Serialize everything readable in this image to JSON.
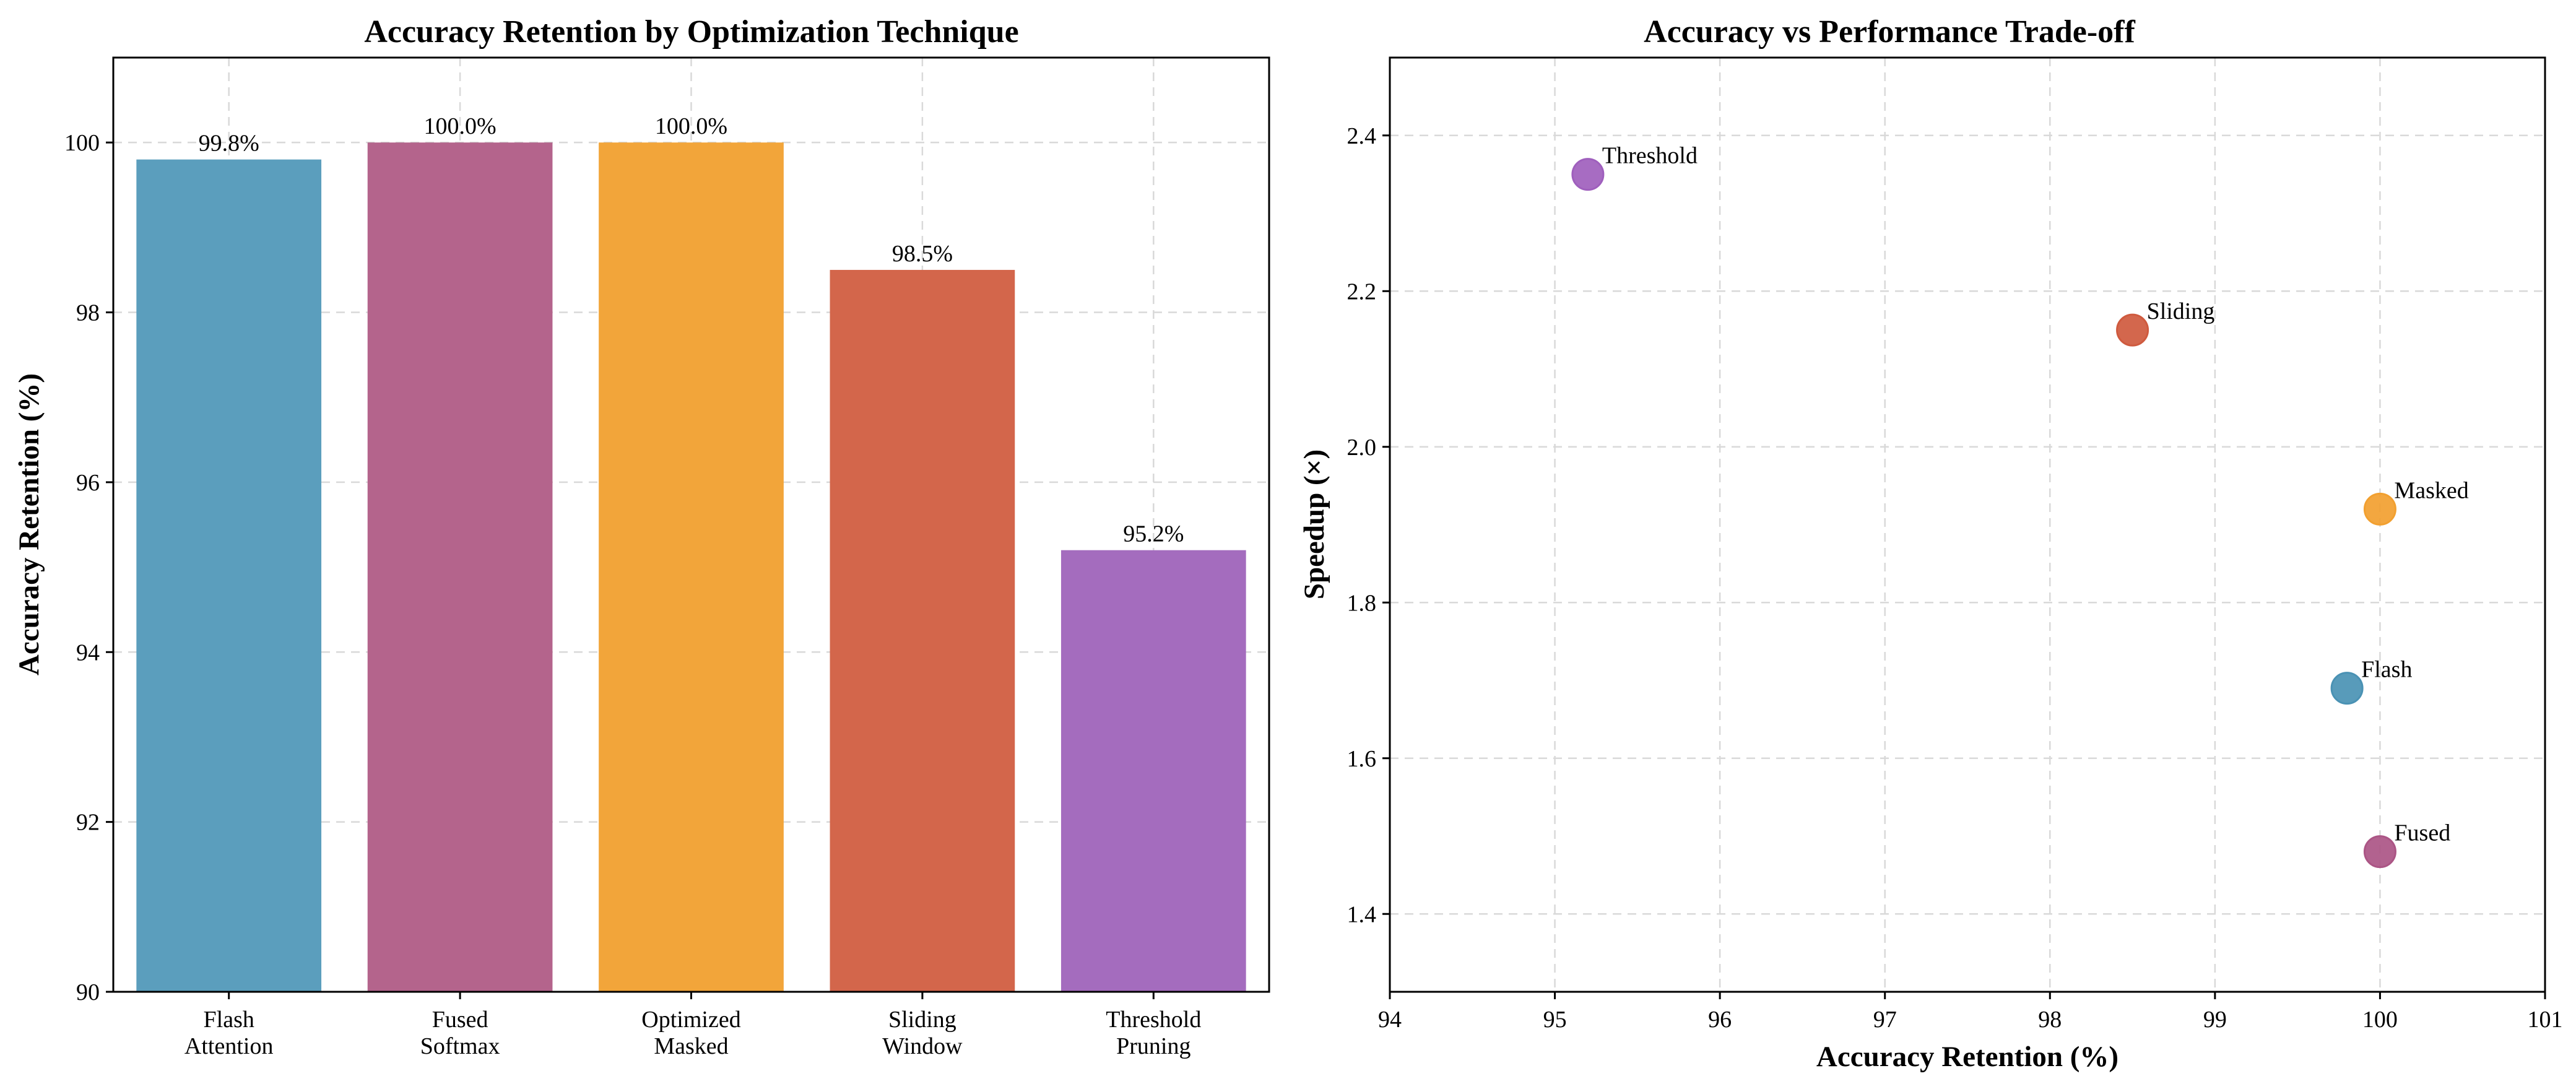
{
  "chart_data": [
    {
      "type": "bar",
      "title": "Accuracy Retention by Optimization Technique",
      "xlabel": "",
      "ylabel": "Accuracy Retention (%)",
      "ylim": [
        90,
        101
      ],
      "yticks": [
        90,
        92,
        94,
        96,
        98,
        100
      ],
      "grid": true,
      "categories": [
        [
          "Flash",
          "Attention"
        ],
        [
          "Fused",
          "Softmax"
        ],
        [
          "Optimized",
          "Masked"
        ],
        [
          "Sliding",
          "Window"
        ],
        [
          "Threshold",
          "Pruning"
        ]
      ],
      "values": [
        99.8,
        100.0,
        100.0,
        98.5,
        95.2
      ],
      "value_labels": [
        "99.8%",
        "100.0%",
        "100.0%",
        "98.5%",
        "95.2%"
      ],
      "colors": [
        "#5b9ebd",
        "#b4648c",
        "#f2a53a",
        "#d3664b",
        "#a46cbe"
      ]
    },
    {
      "type": "scatter",
      "title": "Accuracy vs Performance Trade-off",
      "xlabel": "Accuracy Retention (%)",
      "ylabel": "Speedup (×)",
      "xlim": [
        94,
        101
      ],
      "ylim": [
        1.3,
        2.5
      ],
      "xticks": [
        94,
        95,
        96,
        97,
        98,
        99,
        100,
        101
      ],
      "yticks": [
        1.4,
        1.6,
        1.8,
        2.0,
        2.2,
        2.4
      ],
      "ytick_labels": [
        "1.4",
        "1.6",
        "1.8",
        "2.0",
        "2.2",
        "2.4"
      ],
      "grid": true,
      "points": [
        {
          "label": "Flash",
          "x": 99.8,
          "y": 1.69,
          "color": "#4a92b4"
        },
        {
          "label": "Fused",
          "x": 100.0,
          "y": 1.48,
          "color": "#ab5585"
        },
        {
          "label": "Masked",
          "x": 100.0,
          "y": 1.92,
          "color": "#f2a030"
        },
        {
          "label": "Sliding",
          "x": 98.5,
          "y": 2.15,
          "color": "#cf5a3e"
        },
        {
          "label": "Threshold",
          "x": 95.2,
          "y": 2.35,
          "color": "#9f5fbd"
        }
      ]
    }
  ]
}
